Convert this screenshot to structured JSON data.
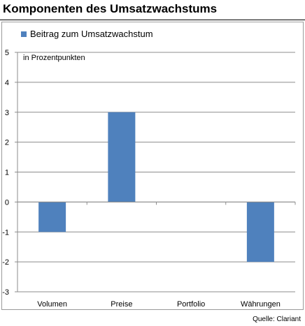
{
  "chart_data": {
    "type": "bar",
    "title": "Komponenten des Umsatzwachstums",
    "categories": [
      "Volumen",
      "Preise",
      "Portfolio",
      "Währungen"
    ],
    "series": [
      {
        "name": "Beitrag zum Umsatzwachstum",
        "values": [
          -1,
          3,
          0,
          -2
        ],
        "color": "#4f81bd"
      }
    ],
    "unit_label": "in Prozentpunkten",
    "ylim": [
      -3,
      5
    ],
    "yticks": [
      -3,
      -2,
      -1,
      0,
      1,
      2,
      3,
      4,
      5
    ],
    "grid": true,
    "legend_position": "top-left",
    "source": "Quelle: Clariant"
  }
}
